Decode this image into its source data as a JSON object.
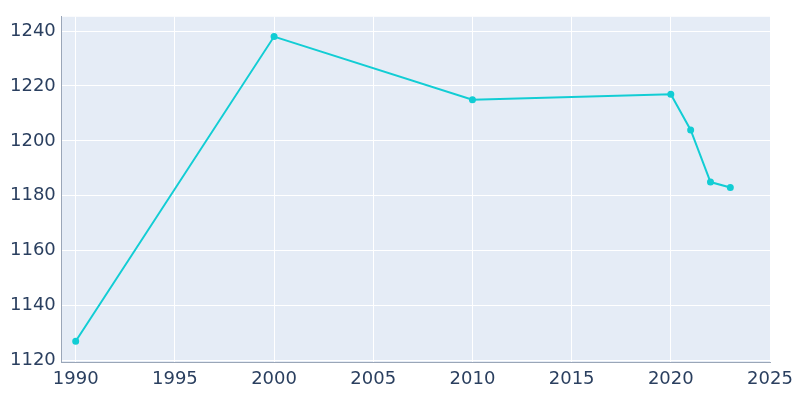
{
  "chart_data": {
    "type": "line",
    "x": [
      1990,
      2000,
      2010,
      2020,
      2021,
      2022,
      2023
    ],
    "values": [
      1127,
      1238,
      1215,
      1217,
      1204,
      1185,
      1183
    ],
    "color": "#12cdd4",
    "marker": "circle",
    "xlim": [
      1989.3,
      2025
    ],
    "xticks": [
      1990,
      1995,
      2000,
      2005,
      2010,
      2015,
      2020,
      2025
    ],
    "ylim": [
      1119.3,
      1245.2
    ],
    "yticks": [
      1120,
      1140,
      1160,
      1180,
      1200,
      1220,
      1240
    ],
    "grid": true
  }
}
